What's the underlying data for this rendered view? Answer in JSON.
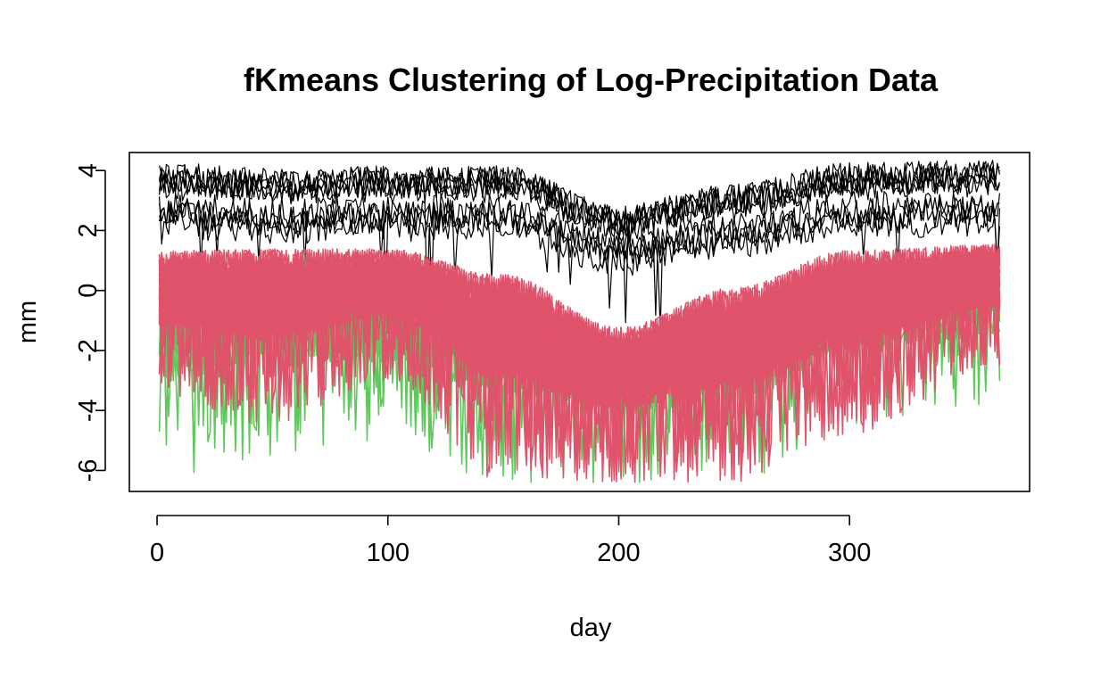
{
  "chart_data": {
    "type": "line",
    "title": "fKmeans Clustering of Log-Precipitation Data",
    "xlabel": "day",
    "ylabel": "mm",
    "xlim": [
      -12,
      378
    ],
    "ylim": [
      -6.7,
      4.6
    ],
    "x_ticks": [
      "0",
      "100",
      "200",
      "300"
    ],
    "y_ticks": [
      "-6",
      "-4",
      "-2",
      "0",
      "2",
      "4"
    ],
    "x_range": [
      1,
      365
    ],
    "grid": false,
    "legend": "none",
    "clusters": [
      {
        "color": "#000000",
        "stations": 9,
        "envelope_days": [
          1,
          50,
          100,
          150,
          200,
          250,
          300,
          365
        ],
        "envelope_upper": [
          4.0,
          3.8,
          3.9,
          3.9,
          2.6,
          3.3,
          4.0,
          4.1
        ],
        "envelope_lower": [
          1.2,
          1.0,
          1.2,
          1.0,
          -0.3,
          0.5,
          1.2,
          1.4
        ],
        "level_means": [
          3.3,
          2.1
        ],
        "low_level_min_dip": -1.5
      },
      {
        "color": "#5ec95b",
        "stations": 12,
        "envelope_days": [
          1,
          50,
          100,
          150,
          200,
          250,
          300,
          365
        ],
        "envelope_upper": [
          1.5,
          1.5,
          1.2,
          0.5,
          -1.0,
          0.0,
          1.2,
          1.6
        ],
        "envelope_lower": [
          -6.4,
          -5.5,
          -5.0,
          -6.4,
          -6.4,
          -6.4,
          -4.5,
          -3.8
        ]
      },
      {
        "color": "#df536b",
        "stations": 35,
        "envelope_days": [
          1,
          50,
          100,
          150,
          200,
          250,
          300,
          365
        ],
        "envelope_upper": [
          2.0,
          2.2,
          2.0,
          1.5,
          -0.5,
          1.0,
          2.2,
          2.1
        ],
        "envelope_lower": [
          -3.5,
          -4.5,
          -3.0,
          -6.4,
          -6.4,
          -6.4,
          -4.8,
          -2.5
        ]
      }
    ]
  }
}
